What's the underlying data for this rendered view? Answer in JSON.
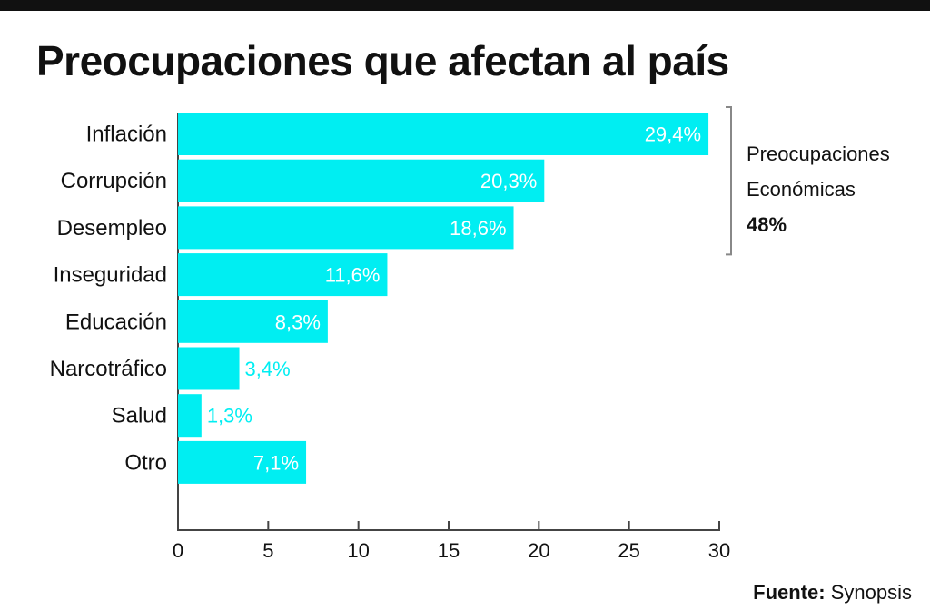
{
  "chart_data": {
    "type": "bar",
    "orientation": "horizontal",
    "title": "Preocupaciones que afectan al país",
    "categories": [
      "Inflación",
      "Corrupción",
      "Desempleo",
      "Inseguridad",
      "Educación",
      "Narcotráfico",
      "Salud",
      "Otro"
    ],
    "values": [
      29.4,
      20.3,
      18.6,
      11.6,
      8.3,
      3.4,
      1.3,
      7.1
    ],
    "value_labels": [
      "29,4%",
      "20,3%",
      "18,6%",
      "11,6%",
      "8,3%",
      "3,4%",
      "1,3%",
      "7,1%"
    ],
    "xlim": [
      0,
      30
    ],
    "xticks": [
      0,
      5,
      10,
      15,
      20,
      25,
      30
    ],
    "xlabel": "",
    "ylabel": "",
    "grid": false,
    "bar_color": "#00eef2",
    "annotation": {
      "line1": "Preocupaciones",
      "line2": "Económicas",
      "value": "48%",
      "covers": [
        "Inflación",
        "Corrupción",
        "Desempleo"
      ]
    }
  },
  "source": {
    "label": "Fuente:",
    "name": "Synopsis"
  }
}
